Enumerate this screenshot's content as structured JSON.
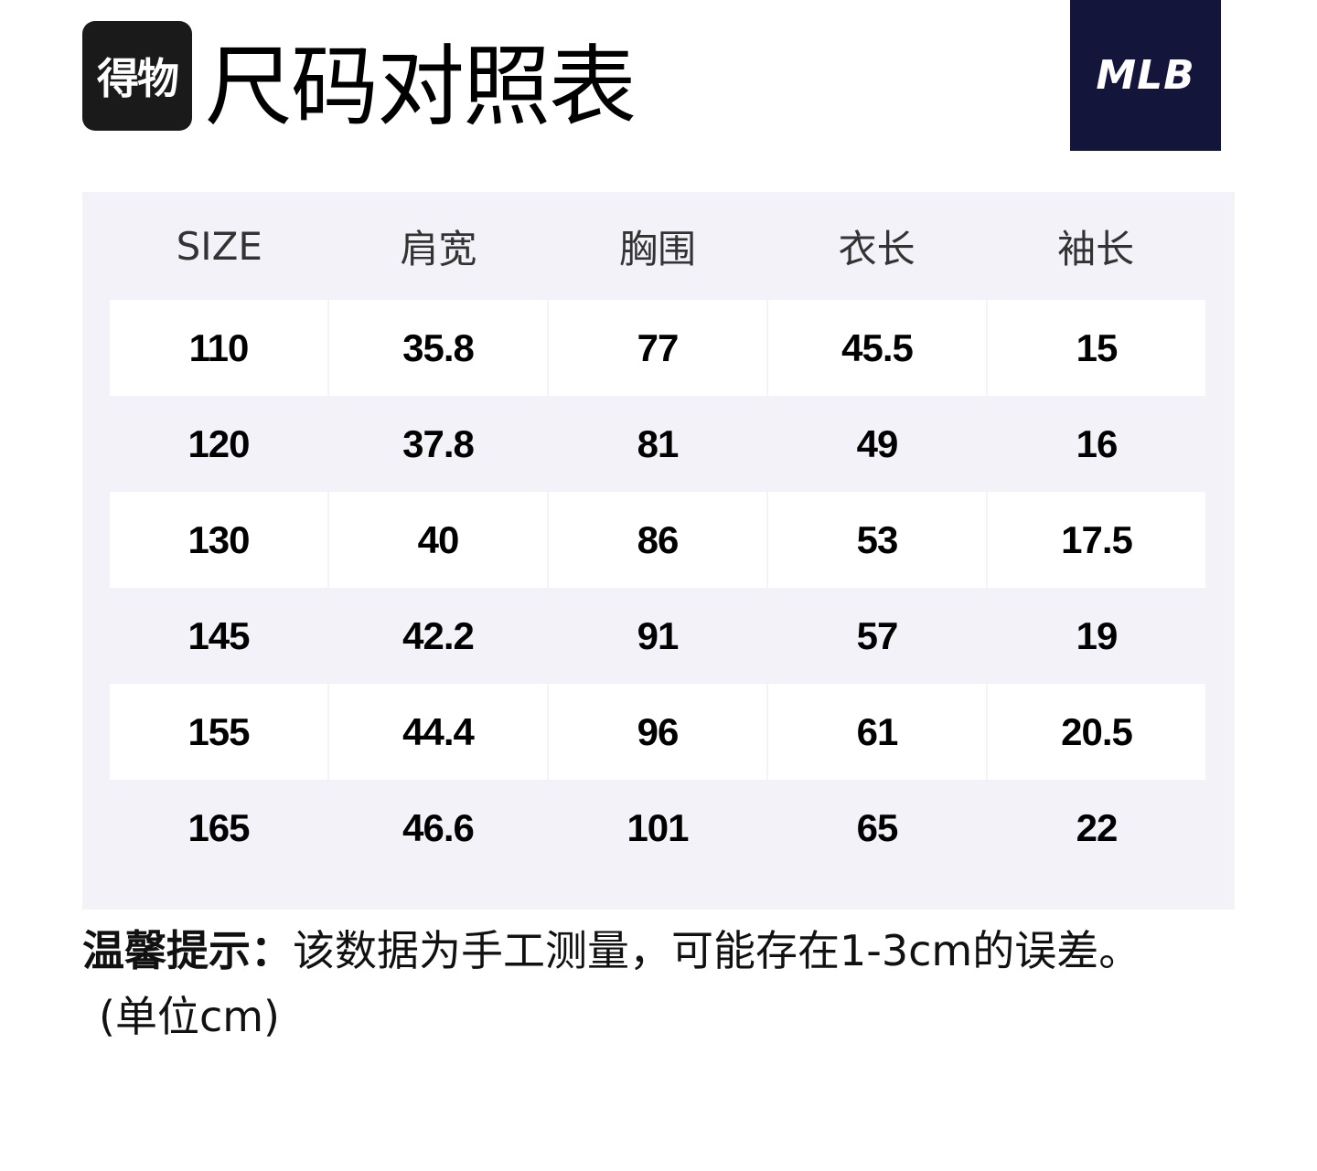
{
  "header": {
    "app_logo_text": "得物",
    "title": "尺码对照表",
    "brand_logo_text": "MLB"
  },
  "table": {
    "columns": [
      "SIZE",
      "肩宽",
      "胸围",
      "衣长",
      "袖长"
    ],
    "rows": [
      [
        "110",
        "35.8",
        "77",
        "45.5",
        "15"
      ],
      [
        "120",
        "37.8",
        "81",
        "49",
        "16"
      ],
      [
        "130",
        "40",
        "86",
        "53",
        "17.5"
      ],
      [
        "145",
        "42.2",
        "91",
        "57",
        "19"
      ],
      [
        "155",
        "44.4",
        "96",
        "61",
        "20.5"
      ],
      [
        "165",
        "46.6",
        "101",
        "65",
        "22"
      ]
    ]
  },
  "footer": {
    "tip_label": "温馨提示：",
    "tip_text": "该数据为手工测量，可能存在1-3cm的误差。",
    "unit_note": "(单位cm)"
  },
  "colors": {
    "brand_navy": "#13163a",
    "table_background": "#f3f2f8",
    "app_logo_background": "#1a1a1a"
  }
}
